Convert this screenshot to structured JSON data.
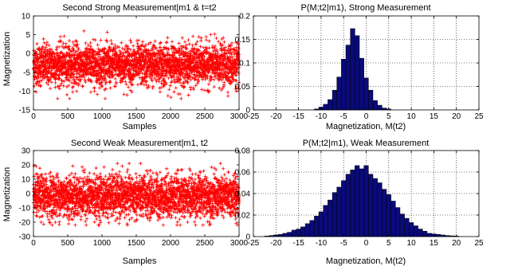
{
  "chart_data": [
    {
      "type": "scatter",
      "title": "Second Strong Measurement|m1 & t=t2",
      "xlabel": "Samples",
      "ylabel": "Magnetization",
      "xlim": [
        0,
        3000
      ],
      "ylim": [
        -15,
        10
      ],
      "xticks": [
        "0",
        "500",
        "1000",
        "1500",
        "2000",
        "2500",
        "3000"
      ],
      "yticks": [
        "-15",
        "-10",
        "-5",
        "0",
        "5",
        "10"
      ],
      "grid": false,
      "marker": "+",
      "color": "#ff0000",
      "sample_count": 3000,
      "center": -3,
      "typical_range": [
        -9,
        2
      ],
      "extremes": [
        -12,
        6
      ]
    },
    {
      "type": "bar",
      "title": "P(M;t2|m1), Strong Measurement",
      "xlabel": "Magnetization, M(t2)",
      "ylabel": "",
      "xlim": [
        -25,
        25
      ],
      "ylim": [
        0,
        0.2
      ],
      "xticks": [
        "-25",
        "-20",
        "-15",
        "-10",
        "-5",
        "0",
        "5",
        "10",
        "15",
        "20",
        "25"
      ],
      "yticks": [
        "0",
        "0.05",
        "0.1",
        "0.15",
        "0.2"
      ],
      "grid": true,
      "bar_width": 1,
      "bar_color": "#0a0a7a",
      "x": [
        -11,
        -10,
        -9,
        -8,
        -7,
        -6,
        -5,
        -4,
        -3,
        -2,
        -1,
        0,
        1,
        2,
        3,
        4,
        5
      ],
      "values": [
        0.002,
        0.006,
        0.012,
        0.022,
        0.042,
        0.07,
        0.108,
        0.138,
        0.173,
        0.158,
        0.11,
        0.068,
        0.042,
        0.02,
        0.01,
        0.004,
        0.002
      ]
    },
    {
      "type": "scatter",
      "title": "Second Weak Measurement|m1, t2",
      "xlabel": "Samples",
      "ylabel": "Magnetization",
      "xlim": [
        0,
        3000
      ],
      "ylim": [
        -30,
        30
      ],
      "xticks": [
        "0",
        "500",
        "1000",
        "1500",
        "2000",
        "2500",
        "3000"
      ],
      "yticks": [
        "-30",
        "-20",
        "-10",
        "0",
        "10",
        "20",
        "30"
      ],
      "grid": false,
      "marker": "+",
      "color": "#ff0000",
      "sample_count": 3000,
      "center": -2,
      "typical_range": [
        -17,
        13
      ],
      "extremes": [
        -22,
        21
      ]
    },
    {
      "type": "bar",
      "title": "P(M;t2|m1), Weak Measurement",
      "xlabel": "Magnetization, M(t2)",
      "ylabel": "",
      "xlim": [
        -25,
        25
      ],
      "ylim": [
        0,
        0.08
      ],
      "xticks": [
        "-25",
        "-20",
        "-15",
        "-10",
        "-5",
        "0",
        "5",
        "10",
        "15",
        "20",
        "25"
      ],
      "yticks": [
        "0",
        "0.02",
        "0.04",
        "0.06",
        "0.08"
      ],
      "grid": true,
      "bar_width": 1,
      "bar_color": "#0a0a7a",
      "x": [
        -22,
        -21,
        -20,
        -19,
        -18,
        -17,
        -16,
        -15,
        -14,
        -13,
        -12,
        -11,
        -10,
        -9,
        -8,
        -7,
        -6,
        -5,
        -4,
        -3,
        -2,
        -1,
        0,
        1,
        2,
        3,
        4,
        5,
        6,
        7,
        8,
        9,
        10,
        11,
        12,
        13,
        14,
        15,
        16,
        17,
        18,
        19,
        20
      ],
      "values": [
        0.0005,
        0.001,
        0.0015,
        0.002,
        0.003,
        0.004,
        0.006,
        0.007,
        0.009,
        0.012,
        0.015,
        0.019,
        0.023,
        0.029,
        0.034,
        0.041,
        0.046,
        0.052,
        0.058,
        0.062,
        0.066,
        0.063,
        0.066,
        0.058,
        0.054,
        0.05,
        0.044,
        0.039,
        0.033,
        0.027,
        0.021,
        0.017,
        0.013,
        0.01,
        0.007,
        0.005,
        0.003,
        0.0025,
        0.002,
        0.0015,
        0.001,
        0.0007,
        0.0005
      ]
    }
  ]
}
